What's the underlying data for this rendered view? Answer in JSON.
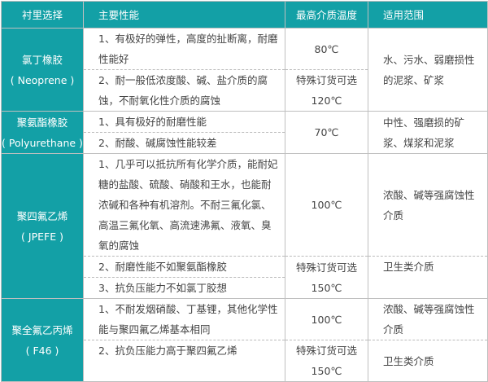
{
  "colors": {
    "accent": "#13a0a6",
    "border": "#bfbfbf",
    "text": "#444444"
  },
  "headers": [
    "衬里选择",
    "主要性能",
    "最高介质温度",
    "适用范围"
  ],
  "rows": [
    {
      "material": [
        "氯丁橡胶",
        "( Neoprene )"
      ],
      "properties": [
        "1、有极好的弹性，高度的扯断离，耐磨性能好",
        "2、耐一般低浓度酸、碱、盐介质的腐蚀，不耐氧化性介质的腐蚀"
      ],
      "temps": [
        "80℃",
        [
          "特殊订货可选",
          "120℃"
        ]
      ],
      "scope": [
        "水、污水、弱磨损性的泥浆、矿浆"
      ]
    },
    {
      "material": [
        "聚氨酯橡胶",
        "( Polyurethane )"
      ],
      "properties": [
        "1、具有极好的耐磨性能",
        "2、耐酸、碱腐蚀性能较差"
      ],
      "temps": [
        "70℃"
      ],
      "scope": [
        "中性、强磨损的矿浆、煤浆和泥浆"
      ]
    },
    {
      "material": [
        "聚四氟乙烯",
        "( JPEFE )"
      ],
      "properties": [
        "1、几乎可以抵抗所有化学介质，能耐妃糖的盐酸、硫酸、硝酸和王水，也能耐浓碱和各种有机溶剂。不耐三氟化氯、高温三氟化氧、高流速沸氟、液氧、臭氧的腐蚀",
        "2、耐磨性能不如聚氨酯橡胶",
        "3、抗负压能力不如氯丁胶想"
      ],
      "temps": [
        "100℃",
        [
          "特殊订货可选",
          "150℃"
        ]
      ],
      "scope": [
        "浓酸、碱等强腐蚀性介质",
        "卫生类介质"
      ]
    },
    {
      "material": [
        "聚全氟乙丙烯",
        "( F46 )"
      ],
      "properties": [
        "1、不耐发烟硝酸、丁基锂，其他化学性能与聚四氟乙烯基本相同",
        "2、抗负压能力高于聚四氟乙烯"
      ],
      "temps": [
        "100℃",
        [
          "特殊订货可选",
          "150℃"
        ]
      ],
      "scope": [
        "浓酸、碱等强腐蚀性介质",
        "卫生类介质"
      ]
    }
  ]
}
